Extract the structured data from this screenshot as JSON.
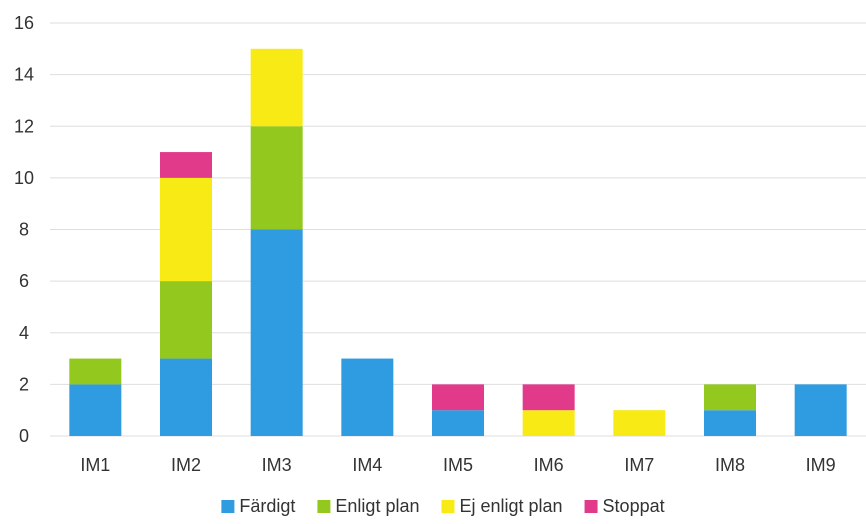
{
  "chart_data": {
    "type": "bar",
    "stacked": true,
    "categories": [
      "IM1",
      "IM2",
      "IM3",
      "IM4",
      "IM5",
      "IM6",
      "IM7",
      "IM8",
      "IM9"
    ],
    "series": [
      {
        "name": "Färdigt",
        "color": "#2f9be0",
        "values": [
          2,
          3,
          8,
          3,
          1,
          0,
          0,
          1,
          2
        ]
      },
      {
        "name": "Enligt plan",
        "color": "#93c91e",
        "values": [
          1,
          3,
          4,
          0,
          0,
          0,
          0,
          1,
          0
        ]
      },
      {
        "name": "Ej enligt plan",
        "color": "#f8ea15",
        "values": [
          0,
          4,
          3,
          0,
          0,
          1,
          1,
          0,
          0
        ]
      },
      {
        "name": "Stoppat",
        "color": "#e23a8a",
        "values": [
          0,
          1,
          0,
          0,
          1,
          1,
          0,
          0,
          0
        ]
      }
    ],
    "ylim": [
      0,
      16
    ],
    "yticks": [
      "0",
      "2",
      "4",
      "6",
      "8",
      "10",
      "12",
      "14",
      "16"
    ],
    "title": "",
    "xlabel": "",
    "ylabel": "",
    "grid": true,
    "legend_position": "bottom"
  }
}
